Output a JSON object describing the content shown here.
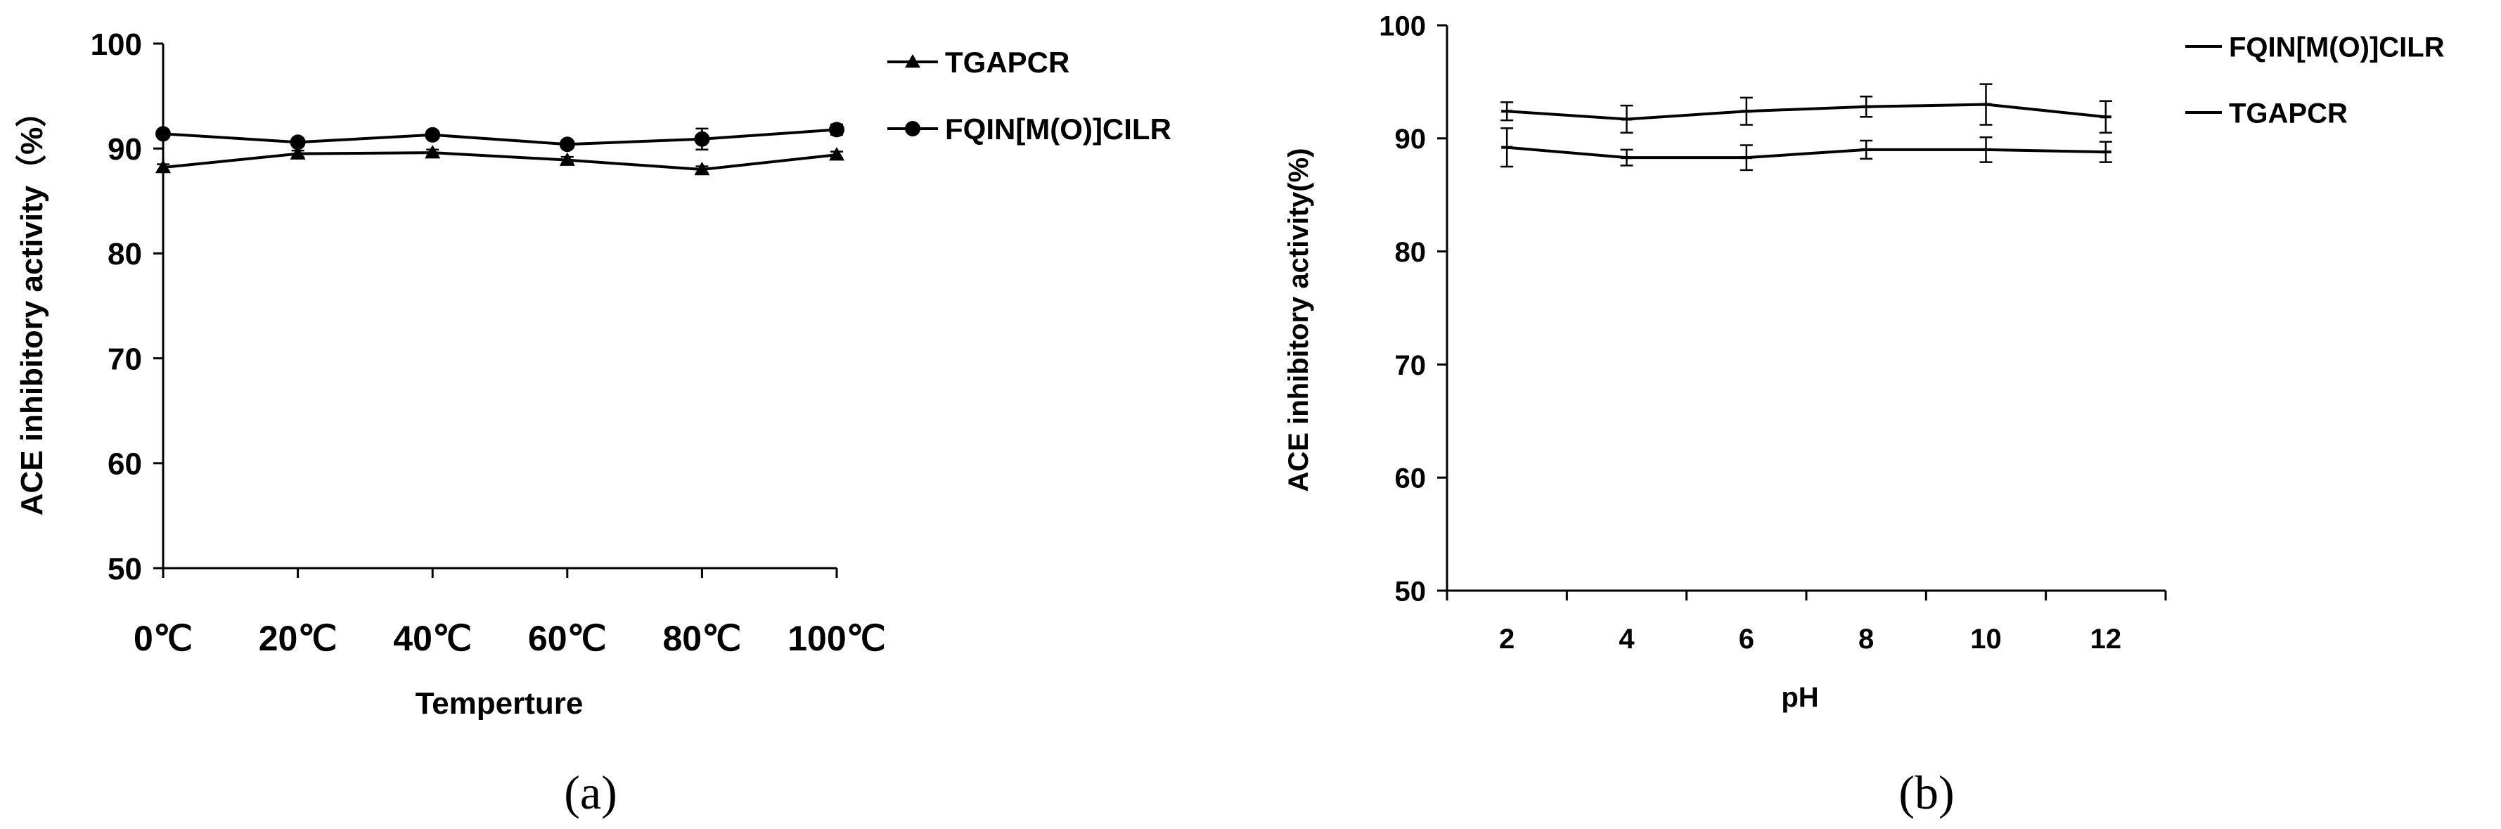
{
  "chart_data": [
    {
      "type": "line",
      "panel_label": "(a)",
      "xlabel": "Temperture",
      "ylabel": "ACE inhibitory  activity（%）",
      "ylim": [
        50,
        100
      ],
      "yticks": [
        50,
        60,
        70,
        80,
        90,
        100
      ],
      "categories": [
        "0℃",
        "20℃",
        "40℃",
        "60℃",
        "80℃",
        "100℃"
      ],
      "grid": false,
      "legend_position": "right",
      "series": [
        {
          "name": "TGAPCR",
          "marker": "triangle",
          "values": [
            88.2,
            89.5,
            89.6,
            88.9,
            88.0,
            89.4
          ],
          "errors": [
            0.3,
            0.3,
            0.3,
            0.3,
            0.3,
            0.3
          ]
        },
        {
          "name": "FQIN[M(O)]CILR",
          "marker": "circle",
          "values": [
            91.4,
            90.6,
            91.3,
            90.4,
            90.9,
            91.8
          ],
          "errors": [
            0.2,
            0.2,
            0.2,
            0.2,
            1.0,
            0.5
          ]
        }
      ]
    },
    {
      "type": "line",
      "panel_label": "(b)",
      "xlabel": "pH",
      "ylabel": "ACE inhibitory  activity(%)",
      "ylim": [
        50,
        100
      ],
      "yticks": [
        50,
        60,
        70,
        80,
        90,
        100
      ],
      "categories": [
        "2",
        "4",
        "6",
        "8",
        "10",
        "12"
      ],
      "grid": false,
      "legend_position": "right",
      "series": [
        {
          "name": "FQIN[M(O)]CILR",
          "marker": "dash",
          "values": [
            92.4,
            91.7,
            92.4,
            92.8,
            93.0,
            91.9
          ],
          "errors": [
            0.8,
            1.2,
            1.2,
            0.9,
            1.8,
            1.4
          ]
        },
        {
          "name": "TGAPCR",
          "marker": "dash",
          "values": [
            89.2,
            88.3,
            88.3,
            89.0,
            89.0,
            88.8
          ],
          "errors": [
            1.7,
            0.7,
            1.1,
            0.8,
            1.1,
            0.9
          ]
        }
      ]
    }
  ]
}
